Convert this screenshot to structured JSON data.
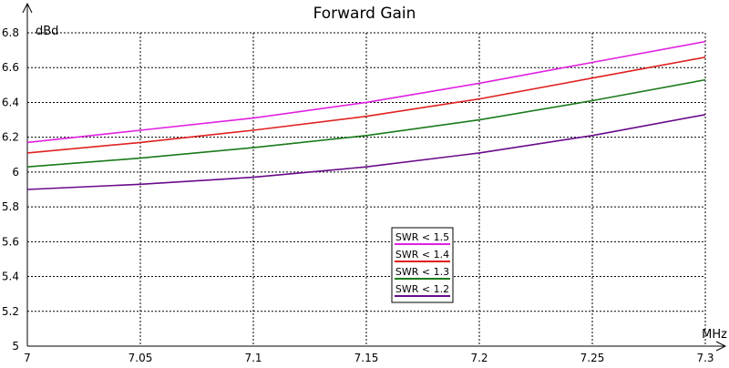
{
  "chart_data": {
    "type": "line",
    "title": "Forward Gain",
    "xlabel": "MHz",
    "ylabel": "dBd",
    "xlim": [
      7,
      7.3
    ],
    "ylim": [
      5,
      6.8
    ],
    "xticks": [
      "7",
      "7.05",
      "7.1",
      "7.15",
      "7.2",
      "7.25",
      "7.3"
    ],
    "yticks": [
      "5",
      "5.2",
      "5.4",
      "5.6",
      "5.8",
      "6",
      "6.2",
      "6.4",
      "6.6",
      "6.8"
    ],
    "grid": true,
    "legend_position": "center-bottom",
    "x": [
      7.0,
      7.05,
      7.1,
      7.15,
      7.2,
      7.25,
      7.3
    ],
    "series": [
      {
        "name": "SWR < 1.5",
        "color": "#e020e0",
        "values": [
          6.17,
          6.24,
          6.31,
          6.4,
          6.51,
          6.63,
          6.75
        ]
      },
      {
        "name": "SWR < 1.4",
        "color": "#e02020",
        "values": [
          6.11,
          6.17,
          6.24,
          6.32,
          6.42,
          6.54,
          6.66
        ]
      },
      {
        "name": "SWR < 1.3",
        "color": "#1a7a1a",
        "values": [
          6.03,
          6.08,
          6.14,
          6.21,
          6.3,
          6.41,
          6.53
        ]
      },
      {
        "name": "SWR < 1.2",
        "color": "#6a0a8a",
        "values": [
          5.9,
          5.93,
          5.97,
          6.03,
          6.11,
          6.21,
          6.33
        ]
      }
    ]
  }
}
